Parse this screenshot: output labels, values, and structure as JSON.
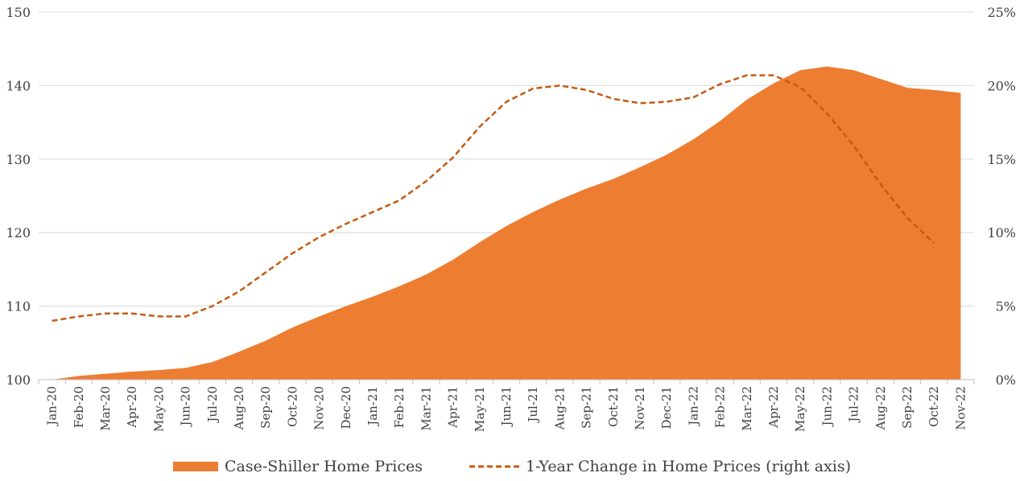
{
  "colors": {
    "area": "#ED7D31",
    "line": "#C55A11",
    "grid": "#D9D9D9",
    "axis": "#BFBFBF",
    "text": "#404040"
  },
  "chart_data": {
    "type": "area",
    "categories": [
      "Jan-20",
      "Feb-20",
      "Mar-20",
      "Apr-20",
      "May-20",
      "Jun-20",
      "Jul-20",
      "Aug-20",
      "Sep-20",
      "Oct-20",
      "Nov-20",
      "Dec-20",
      "Jan-21",
      "Feb-21",
      "Mar-21",
      "Apr-21",
      "May-21",
      "Jun-21",
      "Jul-21",
      "Aug-21",
      "Sep-21",
      "Oct-21",
      "Nov-21",
      "Dec-21",
      "Jan-22",
      "Feb-22",
      "Mar-22",
      "Apr-22",
      "May-22",
      "Jun-22",
      "Jul-22",
      "Aug-22",
      "Sep-22",
      "Oct-22",
      "Nov-22"
    ],
    "series": [
      {
        "name": "Case-Shiller Home Prices",
        "axis": "left",
        "style": "area",
        "values": [
          100.0,
          100.5,
          100.8,
          101.1,
          101.3,
          101.6,
          102.4,
          103.8,
          105.3,
          107.1,
          108.6,
          110.0,
          111.3,
          112.7,
          114.3,
          116.3,
          118.7,
          120.9,
          122.8,
          124.5,
          126.0,
          127.3,
          128.9,
          130.6,
          132.7,
          135.2,
          138.1,
          140.3,
          142.1,
          142.6,
          142.1,
          140.9,
          139.7,
          139.4,
          139.0
        ]
      },
      {
        "name": "1-Year Change in Home Prices (right axis)",
        "axis": "right",
        "style": "dashed-line",
        "values": [
          4.0,
          4.3,
          4.5,
          4.5,
          4.3,
          4.3,
          5.0,
          6.0,
          7.3,
          8.6,
          9.7,
          10.6,
          11.4,
          12.2,
          13.5,
          15.1,
          17.2,
          18.9,
          19.8,
          20.0,
          19.7,
          19.1,
          18.8,
          18.9,
          19.2,
          20.1,
          20.7,
          20.7,
          19.9,
          18.1,
          15.9,
          13.3,
          11.0,
          9.3,
          null
        ]
      }
    ],
    "y_left": {
      "min": 100,
      "max": 150,
      "ticks": [
        "100",
        "110",
        "120",
        "130",
        "140",
        "150"
      ]
    },
    "y_right": {
      "min": 0,
      "max": 25,
      "ticks": [
        "0%",
        "5%",
        "10%",
        "15%",
        "20%",
        "25%"
      ]
    },
    "grid": true,
    "legend_position": "bottom"
  },
  "legend": {
    "area_label": "Case-Shiller Home Prices",
    "line_label": "1-Year Change in Home Prices (right axis)"
  }
}
